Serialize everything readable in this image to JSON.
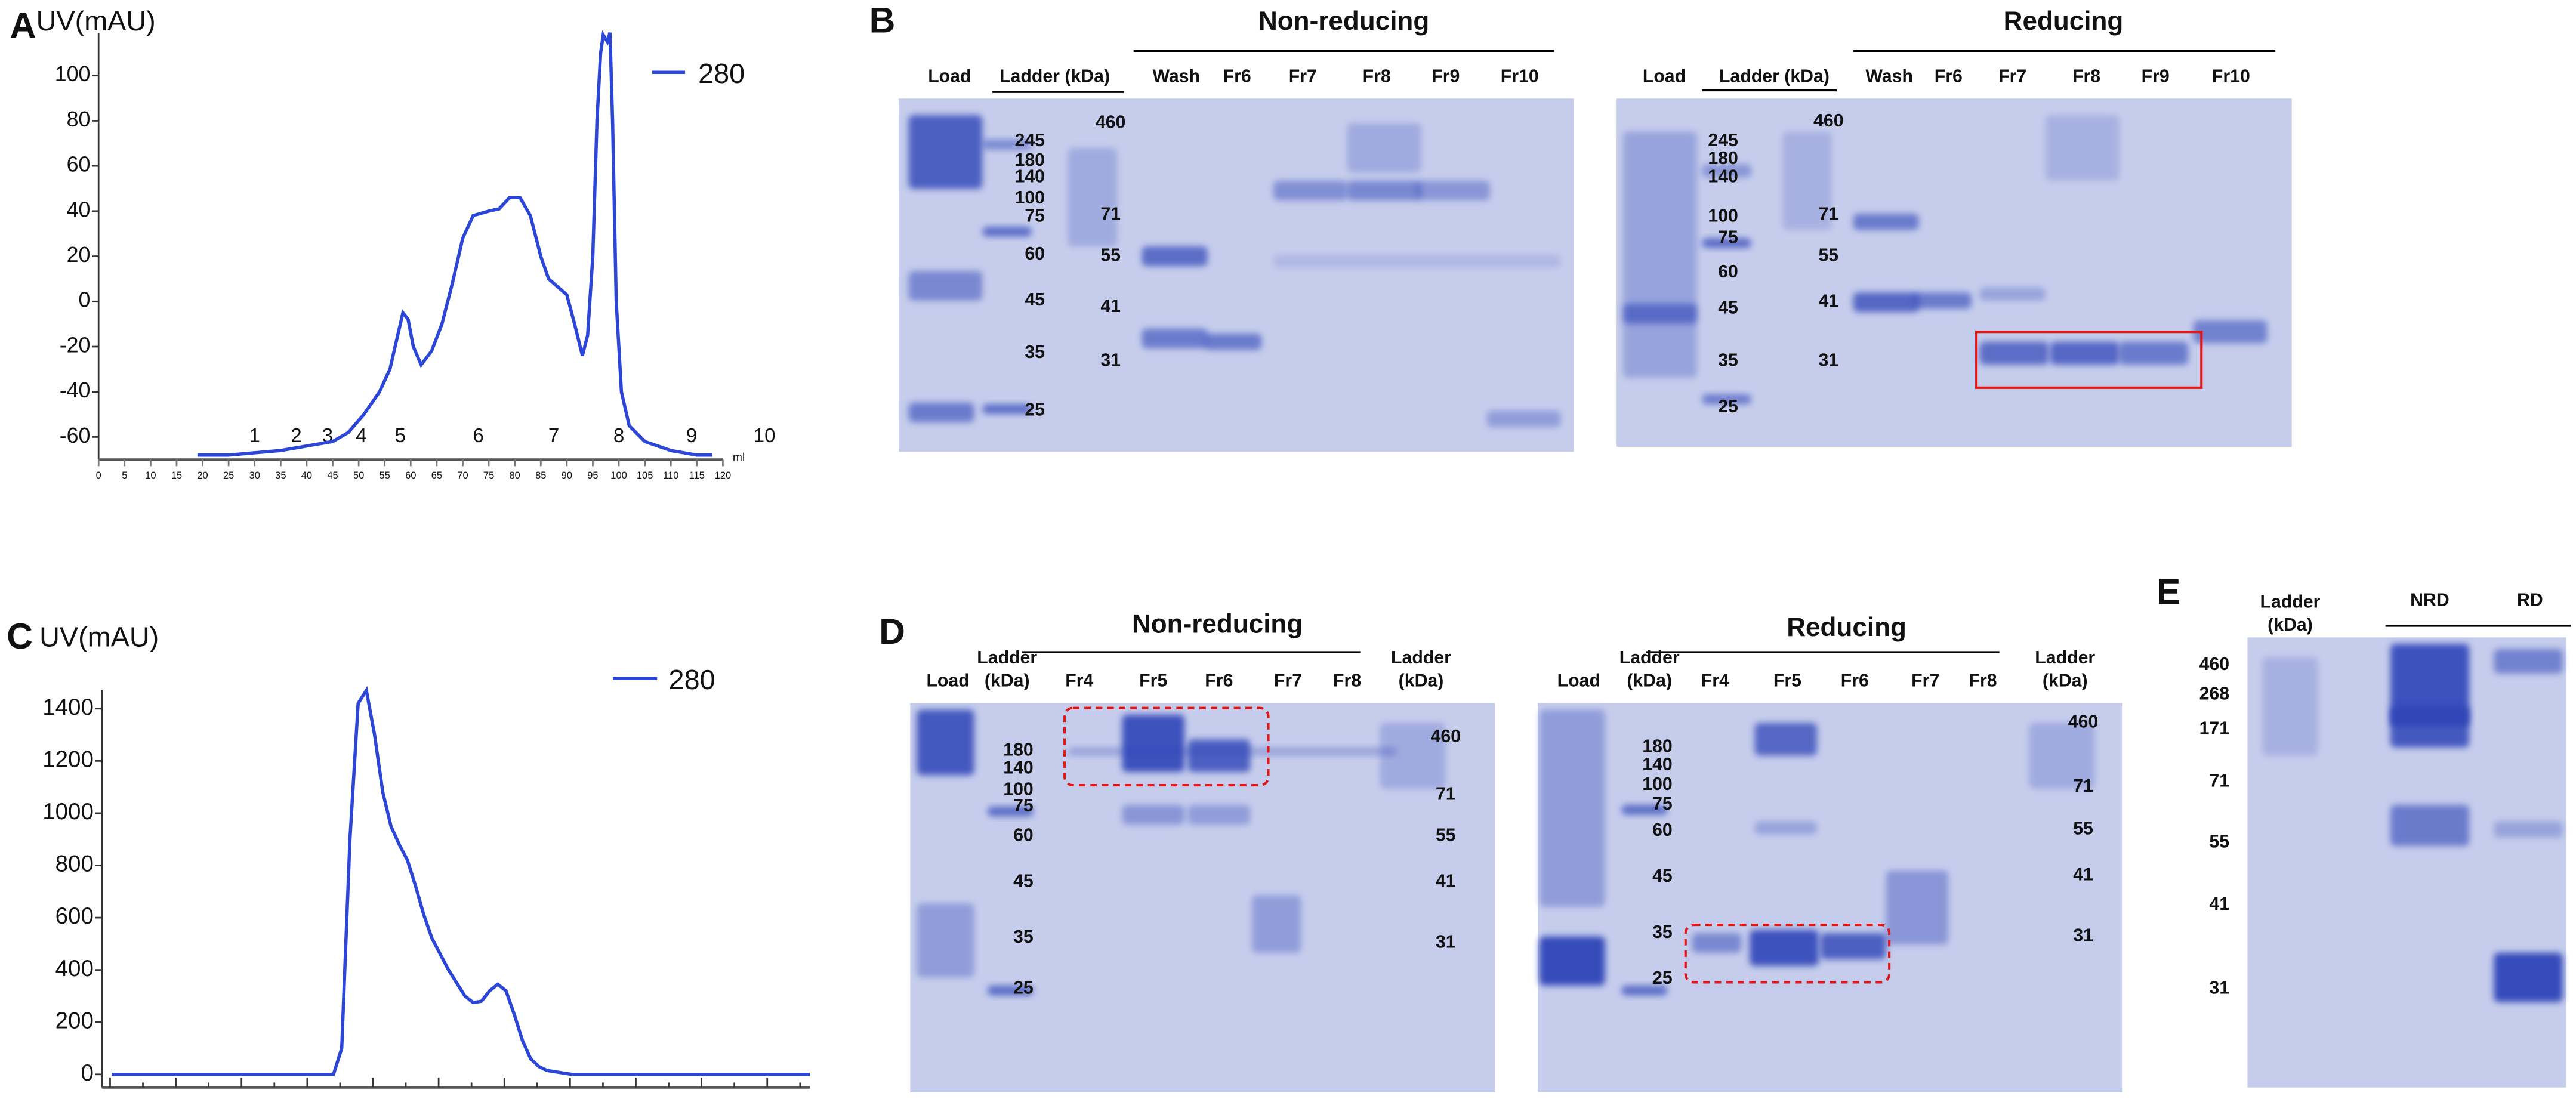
{
  "panel_labels": [
    "A",
    "B",
    "C",
    "D",
    "E"
  ],
  "chart_data": [
    {
      "type": "line",
      "y_label": "UV(mAU)",
      "x_label": "ml",
      "x": [
        19,
        25,
        30,
        35,
        40,
        45,
        48,
        51,
        54,
        56,
        57.5,
        58.5,
        59.5,
        60.5,
        62,
        64,
        66,
        68,
        70,
        72,
        75,
        77,
        79,
        81,
        83,
        85,
        86.5,
        88,
        90,
        91.5,
        93,
        94,
        95,
        95.8,
        96.5,
        97,
        97.8,
        98.3,
        98.8,
        99.5,
        100.5,
        102,
        105,
        110,
        115,
        118
      ],
      "series": [
        {
          "name": "280",
          "color": "#2c47d8",
          "values": [
            -68,
            -68,
            -67,
            -66,
            -64,
            -62,
            -58,
            -50,
            -40,
            -30,
            -15,
            -5,
            -8,
            -20,
            -28,
            -22,
            -10,
            8,
            28,
            38,
            40,
            41,
            46,
            46,
            38,
            20,
            10,
            7,
            3,
            -10,
            -24,
            -15,
            20,
            80,
            110,
            118,
            115,
            119,
            80,
            0,
            -40,
            -55,
            -62,
            -66,
            -68,
            -68
          ]
        }
      ],
      "xlim": [
        0,
        120
      ],
      "xticks": [
        0,
        5,
        10,
        15,
        20,
        25,
        30,
        35,
        40,
        45,
        50,
        55,
        60,
        65,
        70,
        75,
        80,
        85,
        90,
        95,
        100,
        105,
        110,
        115,
        120
      ],
      "ylim": [
        -70,
        120
      ],
      "yticks": [
        -60,
        -40,
        -20,
        0,
        20,
        40,
        60,
        80,
        100
      ],
      "annotations": [
        {
          "text": "1",
          "x": 30
        },
        {
          "text": "2",
          "x": 38
        },
        {
          "text": "3",
          "x": 44
        },
        {
          "text": "4",
          "x": 50.5
        },
        {
          "text": "5",
          "x": 58
        },
        {
          "text": "6",
          "x": 73
        },
        {
          "text": "7",
          "x": 87.5
        },
        {
          "text": "8",
          "x": 100
        },
        {
          "text": "9",
          "x": 114
        },
        {
          "text": "10",
          "x": 128
        }
      ]
    },
    {
      "type": "line",
      "y_label": "UV(mAU)",
      "series": [
        {
          "name": "280",
          "color": "#2c47d8",
          "values": [
            0,
            0,
            0,
            0,
            0,
            0,
            0,
            0,
            0,
            0,
            0,
            0,
            0,
            0,
            0,
            0,
            0,
            0,
            0,
            0,
            0,
            0,
            0,
            0,
            0,
            0,
            0,
            0,
            100,
            900,
            1420,
            1470,
            1300,
            1080,
            950,
            880,
            820,
            720,
            610,
            520,
            460,
            400,
            350,
            300,
            275,
            280,
            320,
            345,
            320,
            230,
            130,
            60,
            30,
            15,
            10,
            5,
            0,
            0,
            0,
            0,
            0,
            0,
            0,
            0,
            0,
            0,
            0,
            0,
            0,
            0,
            0,
            0,
            0,
            0,
            0,
            0,
            0,
            0,
            0,
            0,
            0,
            0,
            0,
            0,
            0,
            0
          ]
        }
      ],
      "ylim": [
        -50,
        1500
      ],
      "yticks": [
        0,
        200,
        400,
        600,
        800,
        1000,
        1200,
        1400
      ]
    }
  ],
  "gels": [
    {
      "title": "Non-reducing",
      "lanes": [
        "Load",
        "Ladder (kDa)",
        "Wash",
        "Fr6",
        "Fr7",
        "Fr8",
        "Fr9",
        "Fr10"
      ],
      "ladder_left": [
        "245",
        "180",
        "140",
        "100",
        "75",
        "60",
        "45",
        "35",
        "25"
      ],
      "ladder_right": [
        "460",
        "71",
        "55",
        "41",
        "31"
      ]
    },
    {
      "title": "Reducing",
      "lanes": [
        "Load",
        "Ladder (kDa)",
        "Wash",
        "Fr6",
        "Fr7",
        "Fr8",
        "Fr9",
        "Fr10"
      ],
      "ladder_left": [
        "245",
        "180",
        "140",
        "100",
        "75",
        "60",
        "45",
        "35",
        "25"
      ],
      "ladder_right": [
        "460",
        "71",
        "55",
        "41",
        "31"
      ]
    },
    {
      "title": "Non-reducing",
      "lanes": [
        "Load",
        [
          "Ladder",
          "(kDa)"
        ],
        "Fr4",
        "Fr5",
        "Fr6",
        "Fr7",
        "Fr8",
        [
          "Ladder",
          "(kDa)"
        ]
      ],
      "ladder_left": [
        "180",
        "140",
        "100",
        "75",
        "60",
        "45",
        "35",
        "25"
      ],
      "ladder_right": [
        "460",
        "71",
        "55",
        "41",
        "31"
      ]
    },
    {
      "title": "Reducing",
      "lanes": [
        "Load",
        [
          "Ladder",
          "(kDa)"
        ],
        "Fr4",
        "Fr5",
        "Fr6",
        "Fr7",
        "Fr8",
        [
          "Ladder",
          "(kDa)"
        ]
      ],
      "ladder_left": [
        "180",
        "140",
        "100",
        "75",
        "60",
        "45",
        "35",
        "25"
      ],
      "ladder_right": [
        "460",
        "71",
        "55",
        "41",
        "31"
      ]
    },
    {
      "lanes": [
        [
          "Ladder",
          "(kDa)"
        ],
        "NRD",
        "RD"
      ],
      "ladder_left": [
        "460",
        "268",
        "171",
        "71",
        "55",
        "41",
        "31"
      ]
    }
  ]
}
